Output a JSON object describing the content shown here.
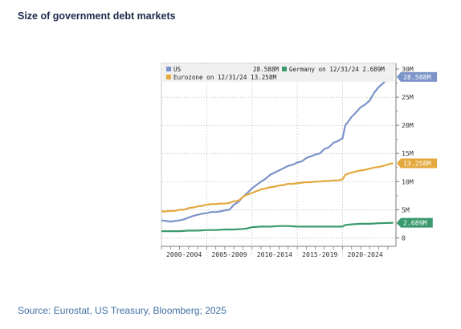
{
  "page": {
    "title": "Size of government debt markets",
    "source": "Source: Eurostat, US Treasury, Bloomberg; 2025"
  },
  "chart_data": {
    "type": "line",
    "title": "",
    "xlabel": "",
    "ylabel": "",
    "x_tick_labels": [
      "2000-2004",
      "2005-2009",
      "2010-2014",
      "2015-2019",
      "2020-2024"
    ],
    "y_tick_labels": [
      "0",
      "5M",
      "10M",
      "15M",
      "20M",
      "25M",
      "30M"
    ],
    "y_ticks": [
      0,
      5,
      10,
      15,
      20,
      25,
      30
    ],
    "ylim": [
      -1.5,
      31
    ],
    "xlim": [
      2000.0,
      2025.9
    ],
    "y_unit": "M",
    "grid": true,
    "legend_position": "top",
    "legend": {
      "us_label": "US",
      "us_value": "28.588M",
      "germany_label": "Germany on 12/31/24 2.689M",
      "eurozone_label": "Eurozone on 12/31/24 13.258M"
    },
    "series": [
      {
        "name": "US",
        "color": "#7b93c8",
        "end_label": "28.588M",
        "x": [
          2000.0,
          2000.5,
          2001.0,
          2001.5,
          2002.0,
          2002.5,
          2003.0,
          2003.5,
          2004.0,
          2004.5,
          2005.0,
          2005.5,
          2006.0,
          2006.5,
          2007.0,
          2007.5,
          2008.0,
          2008.5,
          2009.0,
          2009.5,
          2010.0,
          2010.5,
          2011.0,
          2011.5,
          2012.0,
          2012.5,
          2013.0,
          2013.5,
          2014.0,
          2014.5,
          2015.0,
          2015.5,
          2016.0,
          2016.5,
          2017.0,
          2017.5,
          2018.0,
          2018.5,
          2019.0,
          2019.5,
          2020.0,
          2020.3,
          2020.6,
          2021.0,
          2021.5,
          2022.0,
          2022.5,
          2023.0,
          2023.5,
          2024.0,
          2024.5,
          2024.9,
          2025.3,
          2025.6
        ],
        "values": [
          3.1,
          3.0,
          2.9,
          3.0,
          3.1,
          3.3,
          3.6,
          3.9,
          4.1,
          4.3,
          4.4,
          4.6,
          4.6,
          4.7,
          4.9,
          5.0,
          5.9,
          6.4,
          7.3,
          8.0,
          8.8,
          9.4,
          10.0,
          10.5,
          11.2,
          11.6,
          12.0,
          12.4,
          12.8,
          13.0,
          13.4,
          13.6,
          14.2,
          14.5,
          14.8,
          15.0,
          15.8,
          16.1,
          16.9,
          17.2,
          17.7,
          20.0,
          20.6,
          21.5,
          22.3,
          23.2,
          23.7,
          24.4,
          25.8,
          26.8,
          27.5,
          28.2,
          28.6,
          28.588
        ]
      },
      {
        "name": "Eurozone",
        "color": "#e3a93e",
        "end_label": "13.258M",
        "x": [
          2000.0,
          2000.5,
          2001.0,
          2001.5,
          2002.0,
          2002.5,
          2003.0,
          2003.5,
          2004.0,
          2004.5,
          2005.0,
          2005.5,
          2006.0,
          2006.5,
          2007.0,
          2007.5,
          2008.0,
          2008.5,
          2009.0,
          2009.5,
          2010.0,
          2010.5,
          2011.0,
          2011.5,
          2012.0,
          2012.5,
          2013.0,
          2013.5,
          2014.0,
          2014.5,
          2015.0,
          2015.5,
          2016.0,
          2016.5,
          2017.0,
          2017.5,
          2018.0,
          2018.5,
          2019.0,
          2019.5,
          2020.0,
          2020.3,
          2020.6,
          2021.0,
          2021.5,
          2022.0,
          2022.5,
          2023.0,
          2023.5,
          2024.0,
          2024.5,
          2024.9,
          2025.3,
          2025.6
        ],
        "values": [
          4.7,
          4.7,
          4.8,
          4.8,
          5.0,
          5.0,
          5.3,
          5.4,
          5.6,
          5.7,
          5.9,
          6.0,
          6.0,
          6.1,
          6.1,
          6.2,
          6.5,
          6.6,
          7.3,
          7.7,
          8.0,
          8.3,
          8.6,
          8.8,
          9.0,
          9.1,
          9.3,
          9.4,
          9.6,
          9.6,
          9.7,
          9.8,
          9.9,
          9.9,
          10.0,
          10.0,
          10.1,
          10.1,
          10.2,
          10.2,
          10.4,
          11.2,
          11.4,
          11.6,
          11.8,
          12.0,
          12.1,
          12.3,
          12.5,
          12.6,
          12.8,
          13.0,
          13.2,
          13.258
        ]
      },
      {
        "name": "Germany",
        "color": "#3a9a6e",
        "end_label": "2.689M",
        "x": [
          2000.0,
          2001.0,
          2002.0,
          2003.0,
          2004.0,
          2005.0,
          2006.0,
          2007.0,
          2008.0,
          2009.0,
          2009.5,
          2010.0,
          2011.0,
          2012.0,
          2013.0,
          2014.0,
          2015.0,
          2016.0,
          2017.0,
          2018.0,
          2019.0,
          2020.0,
          2020.3,
          2021.0,
          2022.0,
          2023.0,
          2024.0,
          2025.0,
          2025.6
        ],
        "values": [
          1.2,
          1.2,
          1.2,
          1.3,
          1.3,
          1.4,
          1.4,
          1.5,
          1.5,
          1.6,
          1.7,
          1.9,
          2.0,
          2.0,
          2.1,
          2.1,
          2.0,
          2.0,
          2.0,
          2.0,
          2.0,
          2.0,
          2.3,
          2.4,
          2.5,
          2.5,
          2.6,
          2.65,
          2.689
        ]
      }
    ]
  }
}
